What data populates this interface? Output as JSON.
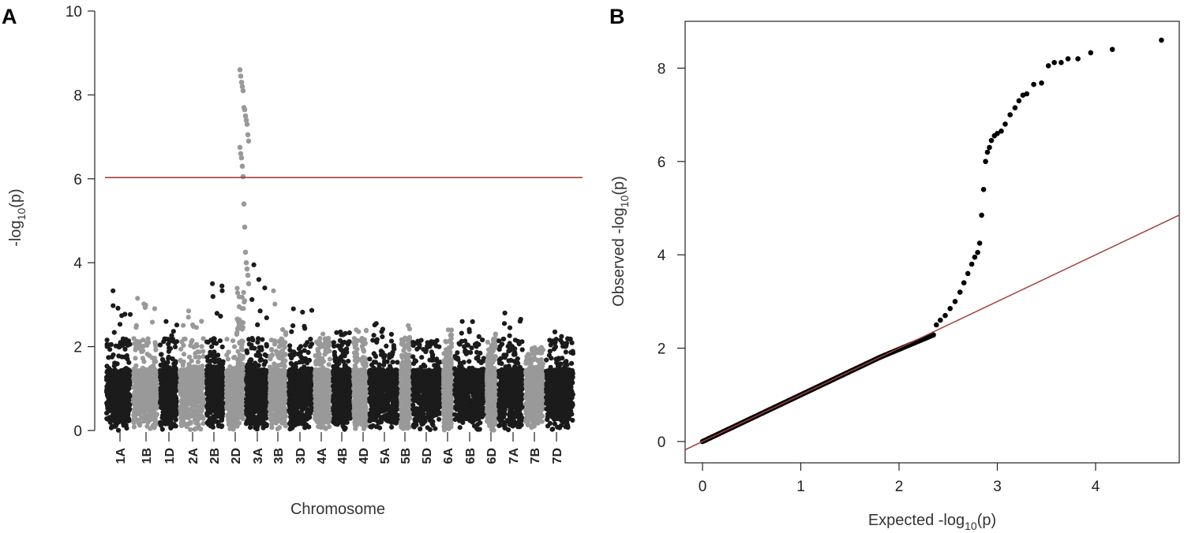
{
  "chart_data": [
    {
      "panel": "A",
      "type": "scatter",
      "subtype": "manhattan",
      "xlabel": "Chromosome",
      "ylabel_main": "-log",
      "ylabel_sub": "10",
      "ylabel_tail": "(p)",
      "ylim": [
        0,
        10
      ],
      "yticks": [
        "0",
        "2",
        "4",
        "6",
        "8",
        "10"
      ],
      "threshold": 6.03,
      "threshold_color": "#a0413c",
      "color_dark": "#1b1b1b",
      "color_light": "#999999",
      "highlight_color": "#e8141e",
      "highlight": "2D",
      "chromosomes": [
        "1A",
        "1B",
        "1D",
        "2A",
        "2B",
        "2D",
        "3A",
        "3B",
        "3D",
        "4A",
        "4B",
        "4D",
        "5A",
        "5B",
        "5D",
        "6A",
        "6B",
        "6D",
        "7A",
        "7B",
        "7D"
      ],
      "chrom_max": [
        3.33,
        3.15,
        2.6,
        2.85,
        3.5,
        8.6,
        3.95,
        3.33,
        2.9,
        2.3,
        2.35,
        2.4,
        2.55,
        2.5,
        2.15,
        2.4,
        2.6,
        2.3,
        2.8,
        1.9,
        2.35
      ],
      "peak_2D": [
        8.6,
        8.45,
        8.3,
        8.2,
        8.1,
        7.7,
        7.65,
        7.5,
        7.4,
        7.3,
        7.05,
        6.9,
        6.75,
        6.6,
        6.5,
        6.3,
        6.05,
        5.4,
        4.85,
        4.25,
        4.0,
        3.85,
        3.7,
        3.5
      ]
    },
    {
      "panel": "B",
      "type": "scatter",
      "subtype": "qq",
      "xlabel_main": "Expected  -log",
      "xlabel_sub": "10",
      "xlabel_tail": "(p)",
      "ylabel_main": "Observed  -log",
      "ylabel_sub": "10",
      "ylabel_tail": "(p)",
      "xlim": [
        0,
        4.8
      ],
      "ylim": [
        0,
        8.9
      ],
      "xticks": [
        "0",
        "1",
        "2",
        "3",
        "4"
      ],
      "yticks": [
        "0",
        "2",
        "4",
        "6",
        "8"
      ],
      "reference_line_color": "#a0413c",
      "point_color": "#000000",
      "tail_points": [
        [
          2.84,
          4.85
        ],
        [
          2.86,
          5.4
        ],
        [
          2.88,
          6.0
        ],
        [
          2.9,
          6.2
        ],
        [
          2.92,
          6.3
        ],
        [
          2.94,
          6.45
        ],
        [
          2.97,
          6.55
        ],
        [
          3.0,
          6.6
        ],
        [
          3.04,
          6.65
        ],
        [
          3.08,
          6.8
        ],
        [
          3.13,
          7.0
        ],
        [
          3.18,
          7.15
        ],
        [
          3.22,
          7.3
        ],
        [
          3.26,
          7.42
        ],
        [
          3.3,
          7.45
        ],
        [
          3.37,
          7.65
        ],
        [
          3.45,
          7.68
        ],
        [
          3.52,
          8.05
        ],
        [
          3.58,
          8.12
        ],
        [
          3.65,
          8.12
        ],
        [
          3.72,
          8.2
        ],
        [
          3.82,
          8.2
        ],
        [
          3.95,
          8.33
        ],
        [
          4.17,
          8.4
        ],
        [
          4.67,
          8.6
        ]
      ]
    }
  ],
  "panels": {
    "a_label": "A",
    "b_label": "B"
  }
}
